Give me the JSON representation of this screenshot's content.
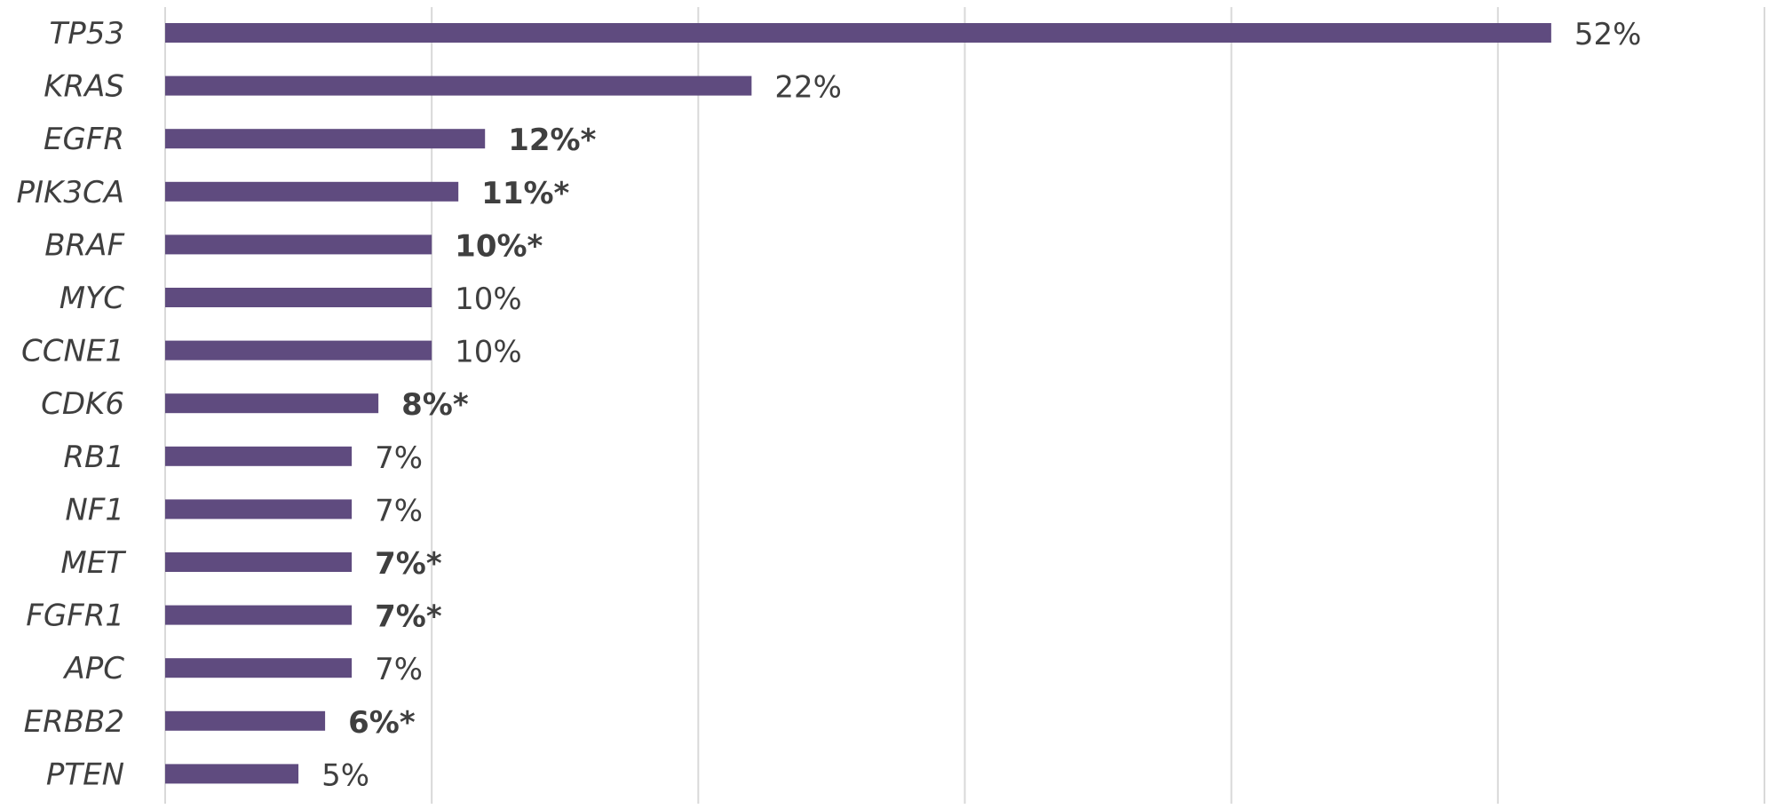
{
  "chart_data": {
    "type": "bar",
    "orientation": "horizontal",
    "categories": [
      "TP53",
      "KRAS",
      "EGFR",
      "PIK3CA",
      "BRAF",
      "MYC",
      "CCNE1",
      "CDK6",
      "RB1",
      "NF1",
      "MET",
      "FGFR1",
      "APC",
      "ERBB2",
      "PTEN"
    ],
    "values": [
      52,
      22,
      12,
      11,
      10,
      10,
      10,
      8,
      7,
      7,
      7,
      7,
      7,
      6,
      5
    ],
    "data_labels": [
      "52%",
      "22%",
      "12%*",
      "11%*",
      "10%*",
      "10%",
      "10%",
      "8%*",
      "7%",
      "7%",
      "7%*",
      "7%*",
      "7%",
      "6%*",
      "5%"
    ],
    "bold_labels": [
      false,
      false,
      true,
      true,
      true,
      false,
      false,
      true,
      false,
      false,
      true,
      true,
      false,
      true,
      false
    ],
    "xlim": [
      0,
      60
    ],
    "x_gridline_step": 10,
    "grid": true,
    "bar_color": "#5f4b7f",
    "title": "",
    "xlabel": "",
    "ylabel": ""
  }
}
